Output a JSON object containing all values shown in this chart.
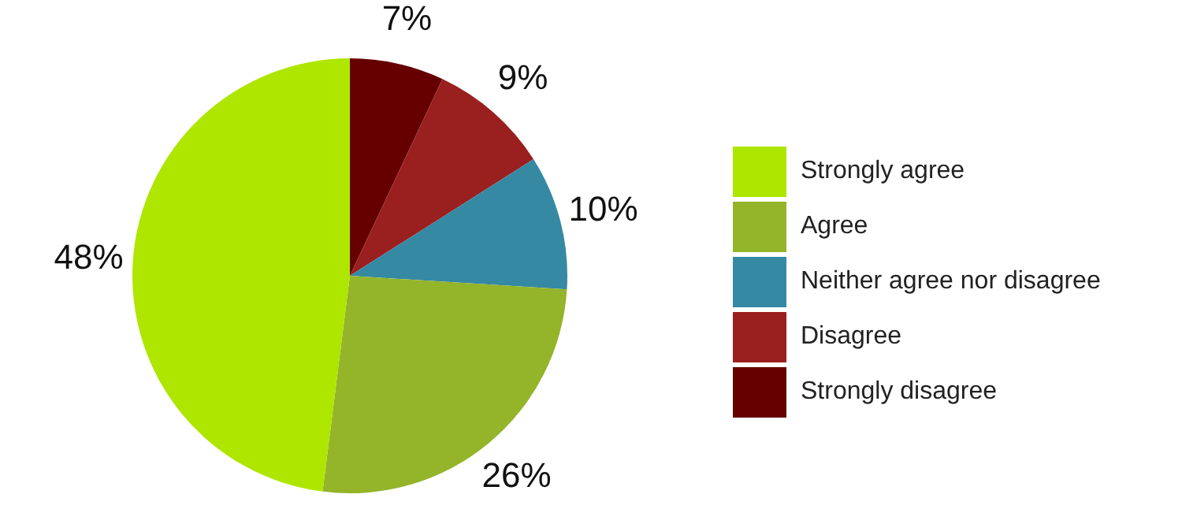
{
  "chart_data": {
    "type": "pie",
    "categories": [
      "Strongly agree",
      "Agree",
      "Neither agree nor disagree",
      "Disagree",
      "Strongly disagree"
    ],
    "values": [
      48,
      26,
      10,
      9,
      7
    ],
    "colors": [
      "#aee600",
      "#94b42a",
      "#3589a3",
      "#9a1f1f",
      "#660000"
    ],
    "value_labels": [
      "48%",
      "26%",
      "10%",
      "9%",
      "7%"
    ],
    "legend": "right"
  }
}
